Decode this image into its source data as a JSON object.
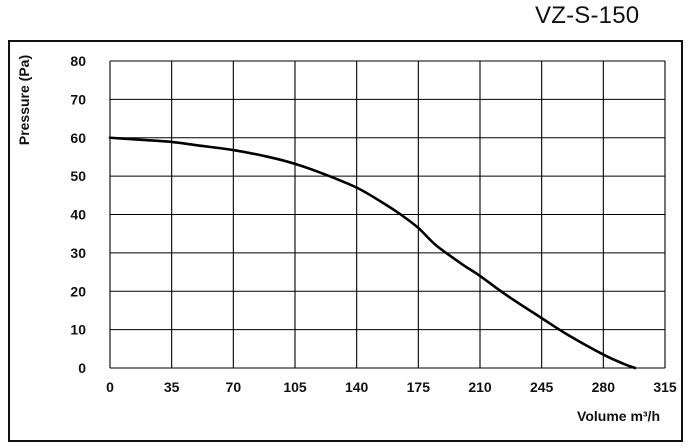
{
  "model_title": "VZ-S-150",
  "chart_data": {
    "type": "line",
    "xlabel": "Volume m³/h",
    "ylabel": "Pressure (Pa)",
    "xlim": [
      0,
      315
    ],
    "ylim": [
      0,
      80
    ],
    "x_ticks": [
      0,
      35,
      70,
      105,
      140,
      175,
      210,
      245,
      280,
      315
    ],
    "y_ticks": [
      0,
      10,
      20,
      30,
      40,
      50,
      60,
      70,
      80
    ],
    "grid": true,
    "line_color": "#000000",
    "series": [
      {
        "x": [
          0,
          20,
          35,
          50,
          70,
          90,
          105,
          120,
          140,
          155,
          165,
          175,
          185,
          200,
          210,
          225,
          245,
          260,
          280,
          292,
          298
        ],
        "y": [
          60,
          59.4,
          58.9,
          58,
          56.8,
          55,
          53.2,
          50.8,
          47,
          43,
          40,
          36.5,
          32,
          27,
          24,
          19,
          13,
          8.6,
          3.5,
          1,
          0
        ]
      }
    ]
  }
}
